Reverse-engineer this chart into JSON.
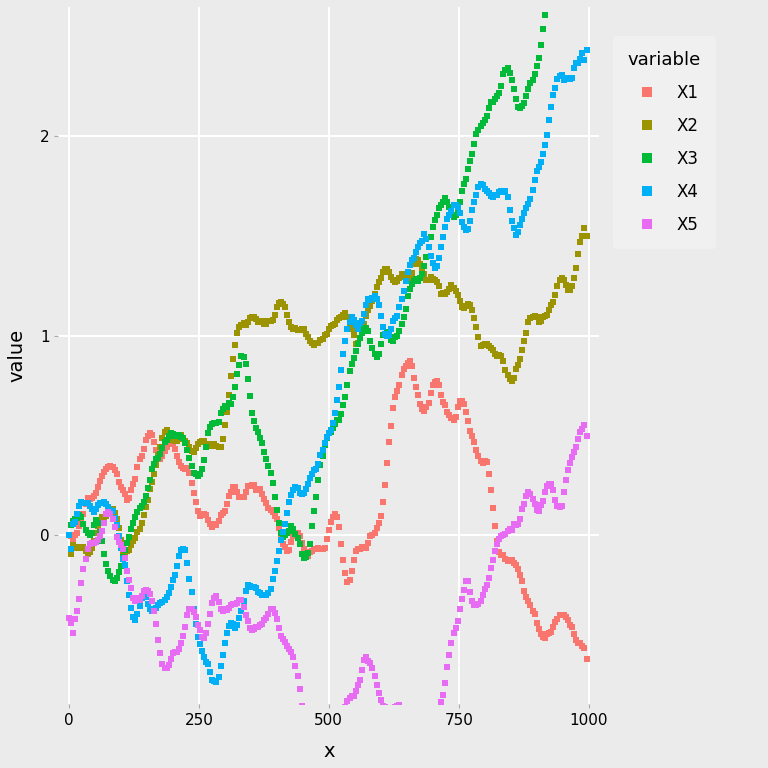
{
  "title": "",
  "xlabel": "x",
  "ylabel": "value",
  "legend_title": "variable",
  "variables": [
    "X1",
    "X2",
    "X3",
    "X4",
    "X5"
  ],
  "colors": {
    "X1": "#F8766D",
    "X2": "#9B9400",
    "X3": "#00BA38",
    "X4": "#00B0F6",
    "X5": "#E76BF3"
  },
  "n_points": 1000,
  "xlim": [
    -20,
    1020
  ],
  "ylim": [
    -0.85,
    2.65
  ],
  "background_color": "#EBEBEB",
  "panel_background": "#EBEBEB",
  "grid_color": "#FFFFFF",
  "marker_size": 22,
  "xticks": [
    0,
    250,
    500,
    750,
    1000
  ],
  "yticks": [
    0.0,
    1.0,
    2.0
  ],
  "figsize": [
    7.68,
    7.68
  ],
  "dpi": 100,
  "subsample": 4
}
